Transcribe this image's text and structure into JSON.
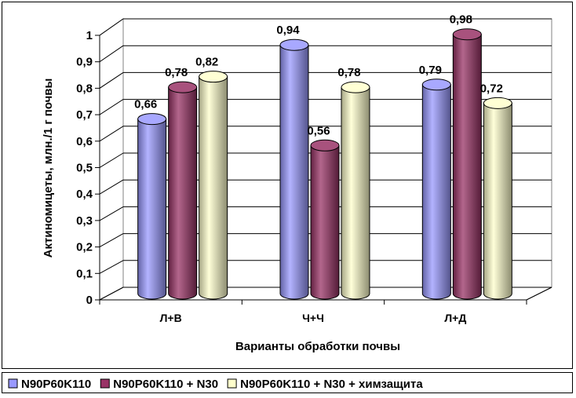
{
  "chart_data": {
    "type": "bar",
    "title": "",
    "xlabel": "Варианты обработки почвы",
    "ylabel": "Актиномицеты, млн./1 г почвы",
    "ylim": [
      0,
      1
    ],
    "y_ticks": [
      "0",
      "0,1",
      "0,2",
      "0,3",
      "0,4",
      "0,5",
      "0,6",
      "0,7",
      "0,8",
      "0,9",
      "1"
    ],
    "categories": [
      "Л+В",
      "Ч+Ч",
      "Л+Д"
    ],
    "series": [
      {
        "name": "N90P60K110",
        "values": [
          0.66,
          0.94,
          0.79
        ],
        "labels": [
          "0,66",
          "0,94",
          "0,79"
        ],
        "color": "#9999ff"
      },
      {
        "name": "N90P60K110 + N30",
        "values": [
          0.78,
          0.56,
          0.98
        ],
        "labels": [
          "0,78",
          "0,56",
          "0,98"
        ],
        "color": "#993366"
      },
      {
        "name": "N90P60K110 + N30 + химзащита",
        "values": [
          0.82,
          0.78,
          0.72
        ],
        "labels": [
          "0,82",
          "0,78",
          "0,72"
        ],
        "color": "#ffffcc"
      }
    ],
    "grid": true,
    "legend_position": "bottom"
  }
}
